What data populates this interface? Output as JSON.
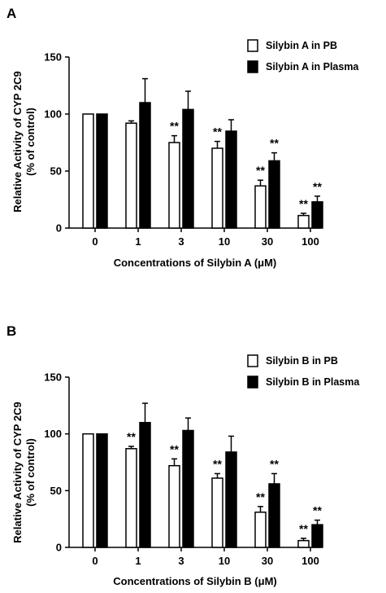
{
  "chart_data": [
    {
      "panel": "A",
      "type": "bar",
      "categories": [
        "0",
        "1",
        "3",
        "10",
        "30",
        "100"
      ],
      "xlabel": "Concentrations of Silybin A (μM)",
      "ylabel_line1": "Relative Activity of CYP 2C9",
      "ylabel_line2": "(% of control)",
      "ylim": [
        0,
        150
      ],
      "yticks": [
        "0",
        "50",
        "100",
        "150"
      ],
      "series": [
        {
          "name": "Silybin A in PB",
          "fill": "#ffffff",
          "values": [
            100,
            92,
            75,
            70,
            37,
            11
          ],
          "errors": [
            0,
            2,
            6,
            6,
            5,
            2
          ],
          "significance": [
            "",
            "",
            "**",
            "**",
            "**",
            "**"
          ]
        },
        {
          "name": "Silybin A in Plasma",
          "fill": "#000000",
          "values": [
            100,
            110,
            104,
            85,
            59,
            23
          ],
          "errors": [
            0,
            21,
            16,
            10,
            7,
            5
          ],
          "significance": [
            "",
            "",
            "",
            "",
            "**",
            "**"
          ]
        }
      ]
    },
    {
      "panel": "B",
      "type": "bar",
      "categories": [
        "0",
        "1",
        "3",
        "10",
        "30",
        "100"
      ],
      "xlabel": "Concentrations of Silybin B (μM)",
      "ylabel_line1": "Relative Activity of CYP 2C9",
      "ylabel_line2": "(% of control)",
      "ylim": [
        0,
        150
      ],
      "yticks": [
        "0",
        "50",
        "100",
        "150"
      ],
      "series": [
        {
          "name": "Silybin B in PB",
          "fill": "#ffffff",
          "values": [
            100,
            87,
            72,
            61,
            31,
            6
          ],
          "errors": [
            0,
            2,
            6,
            4,
            5,
            2
          ],
          "significance": [
            "",
            "**",
            "**",
            "**",
            "**",
            "**"
          ]
        },
        {
          "name": "Silybin B in Plasma",
          "fill": "#000000",
          "values": [
            100,
            110,
            103,
            84,
            56,
            20
          ],
          "errors": [
            0,
            17,
            11,
            14,
            9,
            4
          ],
          "significance": [
            "",
            "",
            "",
            "",
            "**",
            "**"
          ]
        }
      ]
    }
  ]
}
